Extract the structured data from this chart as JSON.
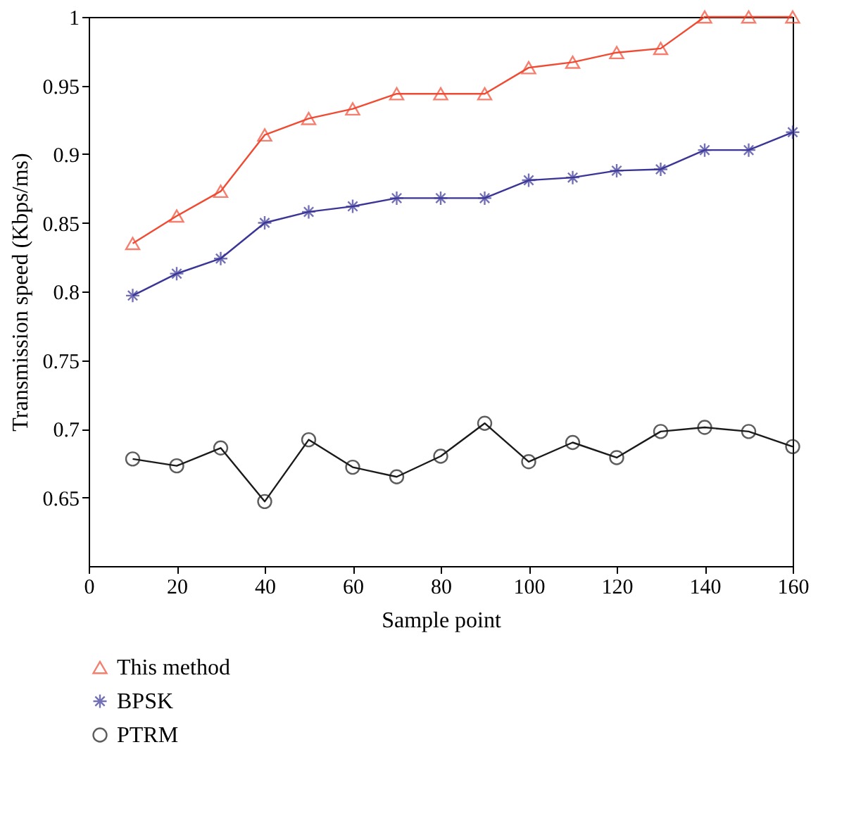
{
  "chart_data": {
    "type": "line",
    "xlabel": "Sample point",
    "ylabel": "Transmission speed (Kbps/ms)",
    "x": [
      10,
      20,
      30,
      40,
      50,
      60,
      70,
      80,
      90,
      100,
      110,
      120,
      130,
      140,
      150,
      160
    ],
    "series": [
      {
        "name": "This method",
        "color": "#f04a32",
        "marker": "triangle",
        "values": [
          0.835,
          0.855,
          0.873,
          0.914,
          0.926,
          0.933,
          0.944,
          0.944,
          0.944,
          0.963,
          0.967,
          0.974,
          0.977,
          1,
          1,
          1
        ]
      },
      {
        "name": "BPSK",
        "color": "#3a3596",
        "marker": "cross",
        "values": [
          0.797,
          0.813,
          0.824,
          0.85,
          0.858,
          0.862,
          0.868,
          0.868,
          0.868,
          0.881,
          0.883,
          0.888,
          0.889,
          0.903,
          0.903,
          0.916
        ]
      },
      {
        "name": "PTRM",
        "color": "#1a1a1a",
        "marker": "circle",
        "values": [
          0.678,
          0.673,
          0.686,
          0.647,
          0.692,
          0.672,
          0.665,
          0.68,
          0.704,
          0.676,
          0.69,
          0.679,
          0.698,
          0.701,
          0.698,
          0.687
        ]
      }
    ],
    "xlim": [
      0,
      160
    ],
    "xticks": [
      0,
      20,
      40,
      60,
      80,
      100,
      120,
      140,
      160
    ],
    "ylim": [
      0.6,
      1
    ],
    "yticks": [
      0.65,
      {
        "value": 0.7,
        "label": "0.7"
      },
      0.75,
      {
        "value": 0.8,
        "label": "0.8"
      },
      0.85,
      {
        "value": 0.9,
        "label": "0.9"
      },
      0.95,
      {
        "value": 1,
        "label": "1"
      }
    ],
    "grid": false,
    "legend": "bottom left",
    "line_style": "solid"
  }
}
